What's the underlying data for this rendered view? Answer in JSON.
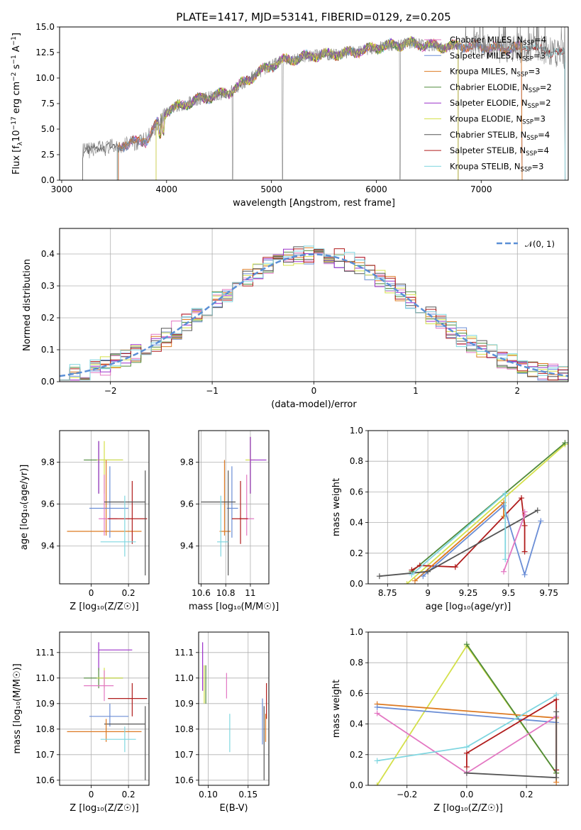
{
  "title": "PLATE=1417, MJD=53141, FIBERID=0129, z=0.205",
  "colors": {
    "chabrier_miles": "#e377c2",
    "salpeter_miles": "#6b8ed6",
    "kroupa_miles": "#dd7a22",
    "chabrier_elodie": "#4f8a3a",
    "salpeter_elodie": "#9b30c9",
    "kroupa_elodie": "#d4e04a",
    "chabrier_stelib": "#555555",
    "salpeter_stelib": "#b01c1c",
    "kroupa_stelib": "#7fd6e0",
    "data": "#808080",
    "gaussian": "#5b8fd6"
  },
  "chart_data": [
    {
      "id": "spectrum",
      "type": "line",
      "xlabel": "wavelength [Angstrom, rest frame]",
      "ylabel": "Flux [f$_\\lambda$10$^{-17}$ erg cm$^{-2}$ s$^{-1}$ A$^{-1}$]",
      "ylabel_parts": [
        "Flux [f",
        "λ",
        "10",
        "−17",
        " erg cm",
        "−2",
        " s",
        "−1",
        " A",
        "−1",
        "]"
      ],
      "xlim": [
        2980,
        7830
      ],
      "ylim": [
        0,
        15
      ],
      "xticks": [
        3000,
        4000,
        5000,
        6000,
        7000
      ],
      "yticks": [
        0.0,
        2.5,
        5.0,
        7.5,
        10.0,
        12.5,
        15.0
      ],
      "grid": false,
      "legend_loc": "right",
      "legend": [
        {
          "name": "Chabrier MILES",
          "n": "4",
          "color": "chabrier_miles"
        },
        {
          "name": "Salpeter MILES",
          "n": "3",
          "color": "salpeter_miles"
        },
        {
          "name": "Kroupa MILES",
          "n": "3",
          "color": "kroupa_miles"
        },
        {
          "name": "Chabrier ELODIE",
          "n": "2",
          "color": "chabrier_elodie"
        },
        {
          "name": "Salpeter ELODIE",
          "n": "2",
          "color": "salpeter_elodie"
        },
        {
          "name": "Kroupa ELODIE",
          "n": "3",
          "color": "kroupa_elodie"
        },
        {
          "name": "Chabrier STELIB",
          "n": "4",
          "color": "chabrier_stelib"
        },
        {
          "name": "Salpeter STELIB",
          "n": "4",
          "color": "salpeter_stelib"
        },
        {
          "name": "Kroupa STELIB",
          "n": "3",
          "color": "kroupa_stelib"
        }
      ],
      "n_label": "N",
      "n_sub": "SSP",
      "continuum": [
        [
          3200,
          2.8
        ],
        [
          3500,
          3.3
        ],
        [
          3800,
          3.9
        ],
        [
          4000,
          6.8
        ],
        [
          4300,
          7.9
        ],
        [
          4600,
          8.6
        ],
        [
          4900,
          10.7
        ],
        [
          5100,
          11.7
        ],
        [
          5400,
          12.2
        ],
        [
          5700,
          12.4
        ],
        [
          6000,
          13.0
        ],
        [
          6300,
          13.4
        ],
        [
          6600,
          13.1
        ],
        [
          6900,
          13.1
        ],
        [
          7200,
          12.9
        ],
        [
          7500,
          13.0
        ],
        [
          7800,
          12.3
        ]
      ],
      "model_starts": {
        "chabrier_stelib": 3200,
        "salpeter_stelib": 3530,
        "kroupa_stelib": 3530,
        "chabrier_miles": 3540,
        "salpeter_miles": 3540,
        "kroupa_miles": 3540,
        "chabrier_elodie": 3900,
        "salpeter_elodie": 3900,
        "kroupa_elodie": 3900
      },
      "model_ends": {
        "chabrier_miles": 7390,
        "salpeter_miles": 7390,
        "kroupa_miles": 7390,
        "chabrier_elodie": 6780,
        "salpeter_elodie": 6780,
        "kroupa_elodie": 6780,
        "chabrier_stelib": 7800,
        "salpeter_stelib": 7800,
        "kroupa_stelib": 7800
      },
      "deep_lines": [
        4630,
        6225,
        5105
      ]
    },
    {
      "id": "residual-histogram",
      "type": "histogram",
      "xlabel": "(data-model)/error",
      "ylabel": "Normed distribution",
      "xlim": [
        -2.5,
        2.5
      ],
      "ylim": [
        0,
        0.48
      ],
      "xticks": [
        -2,
        -1,
        0,
        1,
        2
      ],
      "xtick_labels": [
        "−2",
        "−1",
        "0",
        "1",
        "2"
      ],
      "yticks": [
        0.0,
        0.1,
        0.2,
        0.3,
        0.4
      ],
      "grid": true,
      "bin_width": 0.1,
      "legend_loc": "upper right",
      "legend": [
        {
          "name": "𝒩(0, 1)",
          "color": "gaussian",
          "dashed": true
        }
      ]
    },
    {
      "id": "age-vs-metallicity",
      "type": "errorbar",
      "xlabel": "Z [log₁₀(Z/Z☉)]",
      "ylabel": "age  [log₁₀(age/yr)]",
      "xlim": [
        -0.17,
        0.31
      ],
      "ylim": [
        9.22,
        9.95
      ],
      "xticks": [
        0.0,
        0.2
      ],
      "yticks": [
        9.4,
        9.6,
        9.8
      ],
      "grid": true,
      "points": [
        {
          "c": "chabrier_elodie",
          "x": 0.04,
          "xerr": [
            0.08,
            0.13
          ],
          "y": 9.81,
          "yerr": [
            0.16,
            0.09
          ]
        },
        {
          "c": "kroupa_elodie",
          "x": 0.07,
          "xerr": [
            0.04,
            0.1
          ],
          "y": 9.81,
          "yerr": [
            0.16,
            0.09
          ]
        },
        {
          "c": "salpeter_elodie",
          "x": 0.04,
          "xerr": [
            0.0,
            0.0
          ],
          "y": 9.81,
          "yerr": [
            0.16,
            0.09
          ]
        },
        {
          "c": "kroupa_miles",
          "x": 0.08,
          "xerr": [
            0.21,
            0.19
          ],
          "y": 9.47,
          "yerr": [
            0.02,
            0.34
          ]
        },
        {
          "c": "salpeter_miles",
          "x": 0.1,
          "xerr": [
            0.11,
            0.1
          ],
          "y": 9.58,
          "yerr": [
            0.14,
            0.2
          ]
        },
        {
          "c": "chabrier_miles",
          "x": 0.07,
          "xerr": [
            0.03,
            0.07
          ],
          "y": 9.53,
          "yerr": [
            0.08,
            0.21
          ]
        },
        {
          "c": "salpeter_stelib",
          "x": 0.22,
          "xerr": [
            0.13,
            0.08
          ],
          "y": 9.53,
          "yerr": [
            0.12,
            0.18
          ]
        },
        {
          "c": "chabrier_stelib",
          "x": 0.29,
          "xerr": [
            0.22,
            0.0
          ],
          "y": 9.61,
          "yerr": [
            0.35,
            0.15
          ]
        },
        {
          "c": "kroupa_stelib",
          "x": 0.18,
          "xerr": [
            0.13,
            0.06
          ],
          "y": 9.42,
          "yerr": [
            0.07,
            0.22
          ]
        }
      ]
    },
    {
      "id": "age-vs-mass",
      "type": "errorbar",
      "xlabel": "mass [log₁₀(M/M☉)]",
      "ylabel": "",
      "xlim": [
        10.58,
        11.15
      ],
      "ylim": [
        9.22,
        9.95
      ],
      "xticks": [
        10.6,
        10.8,
        11.0
      ],
      "yticks": [
        9.4,
        9.6,
        9.8
      ],
      "grid": true,
      "points": [
        {
          "c": "chabrier_elodie",
          "x": 11.0,
          "xerr": [
            0.0,
            0.0
          ],
          "y": 9.81,
          "yerr": [
            0.16,
            0.11
          ]
        },
        {
          "c": "kroupa_elodie",
          "x": 11.0,
          "xerr": [
            0.04,
            0.04
          ],
          "y": 9.81,
          "yerr": [
            0.16,
            0.11
          ]
        },
        {
          "c": "salpeter_elodie",
          "x": 11.0,
          "xerr": [
            0.0,
            0.13
          ],
          "y": 9.81,
          "yerr": [
            0.16,
            0.11
          ]
        },
        {
          "c": "kroupa_miles",
          "x": 10.79,
          "xerr": [
            0.04,
            0.05
          ],
          "y": 9.47,
          "yerr": [
            0.02,
            0.34
          ]
        },
        {
          "c": "salpeter_miles",
          "x": 10.85,
          "xerr": [
            0.04,
            0.05
          ],
          "y": 9.58,
          "yerr": [
            0.14,
            0.2
          ]
        },
        {
          "c": "chabrier_miles",
          "x": 10.97,
          "xerr": [
            0.06,
            0.06
          ],
          "y": 9.53,
          "yerr": [
            0.08,
            0.21
          ]
        },
        {
          "c": "salpeter_stelib",
          "x": 10.92,
          "xerr": [
            0.07,
            0.06
          ],
          "y": 9.53,
          "yerr": [
            0.12,
            0.18
          ]
        },
        {
          "c": "chabrier_stelib",
          "x": 10.82,
          "xerr": [
            0.22,
            0.06
          ],
          "y": 9.61,
          "yerr": [
            0.35,
            0.15
          ]
        },
        {
          "c": "kroupa_stelib",
          "x": 10.76,
          "xerr": [
            0.03,
            0.06
          ],
          "y": 9.42,
          "yerr": [
            0.07,
            0.22
          ]
        }
      ]
    },
    {
      "id": "mass-weight-vs-age",
      "type": "line",
      "xlabel": "age  [log₁₀(age/yr)]",
      "ylabel": "mass weight",
      "xlim": [
        8.63,
        9.87
      ],
      "ylim": [
        0.0,
        1.0
      ],
      "xticks": [
        8.75,
        9.0,
        9.25,
        9.5,
        9.75
      ],
      "yticks": [
        0.0,
        0.2,
        0.4,
        0.6,
        0.8,
        1.0
      ],
      "grid": true,
      "series": [
        {
          "c": "kroupa_elodie",
          "x": [
            8.87,
            9.85
          ],
          "y": [
            0.0,
            0.91
          ]
        },
        {
          "c": "chabrier_elodie",
          "x": [
            8.9,
            9.85
          ],
          "y": [
            0.08,
            0.92
          ]
        },
        {
          "c": "salpeter_stelib",
          "x": [
            8.9,
            8.95,
            9.17,
            9.58,
            9.6,
            9.6
          ],
          "y": [
            0.09,
            0.12,
            0.11,
            0.56,
            0.38,
            0.21
          ]
        },
        {
          "c": "kroupa_miles",
          "x": [
            8.92,
            9.47,
            9.47
          ],
          "y": [
            0.02,
            0.53,
            0.44
          ]
        },
        {
          "c": "salpeter_miles",
          "x": [
            8.97,
            9.47,
            9.6,
            9.7
          ],
          "y": [
            0.05,
            0.51,
            0.06,
            0.41
          ]
        },
        {
          "c": "chabrier_stelib",
          "x": [
            8.7,
            9.0,
            9.68
          ],
          "y": [
            0.05,
            0.08,
            0.48
          ]
        },
        {
          "c": "kroupa_stelib",
          "x": [
            8.9,
            9.48,
            9.48
          ],
          "y": [
            0.06,
            0.59,
            0.16
          ]
        },
        {
          "c": "chabrier_miles",
          "x": [
            9.47,
            9.6,
            9.6
          ],
          "y": [
            0.08,
            0.45,
            0.47
          ]
        }
      ]
    },
    {
      "id": "mass-vs-metallicity",
      "type": "errorbar",
      "xlabel": "Z [log₁₀(Z/Z☉)]",
      "ylabel": "mass [log₁₀(M/M☉)]",
      "xlim": [
        -0.17,
        0.31
      ],
      "ylim": [
        10.58,
        11.18
      ],
      "xticks": [
        0.0,
        0.2
      ],
      "yticks": [
        10.6,
        10.7,
        10.8,
        10.9,
        11.0,
        11.1
      ],
      "grid": true,
      "points": [
        {
          "c": "salpeter_elodie",
          "x": 0.04,
          "xerr": [
            0.0,
            0.18
          ],
          "y": 11.11,
          "yerr": [
            0.08,
            0.03
          ]
        },
        {
          "c": "chabrier_elodie",
          "x": 0.04,
          "xerr": [
            0.08,
            0.13
          ],
          "y": 11.0,
          "yerr": [
            0.04,
            0.04
          ]
        },
        {
          "c": "kroupa_elodie",
          "x": 0.07,
          "xerr": [
            0.04,
            0.1
          ],
          "y": 11.0,
          "yerr": [
            0.04,
            0.04
          ]
        },
        {
          "c": "chabrier_miles",
          "x": 0.07,
          "xerr": [
            0.11,
            0.05
          ],
          "y": 10.97,
          "yerr": [
            0.06,
            0.06
          ]
        },
        {
          "c": "salpeter_stelib",
          "x": 0.22,
          "xerr": [
            0.13,
            0.08
          ],
          "y": 10.92,
          "yerr": [
            0.07,
            0.06
          ]
        },
        {
          "c": "salpeter_miles",
          "x": 0.1,
          "xerr": [
            0.11,
            0.1
          ],
          "y": 10.85,
          "yerr": [
            0.04,
            0.05
          ]
        },
        {
          "c": "chabrier_stelib",
          "x": 0.29,
          "xerr": [
            0.22,
            0.0
          ],
          "y": 10.82,
          "yerr": [
            0.22,
            0.07
          ]
        },
        {
          "c": "kroupa_miles",
          "x": 0.08,
          "xerr": [
            0.21,
            0.19
          ],
          "y": 10.79,
          "yerr": [
            0.04,
            0.05
          ]
        },
        {
          "c": "kroupa_stelib",
          "x": 0.18,
          "xerr": [
            0.13,
            0.06
          ],
          "y": 10.76,
          "yerr": [
            0.05,
            0.05
          ]
        }
      ]
    },
    {
      "id": "mass-vs-ebv",
      "type": "errorbar",
      "xlabel": "E(B-V)",
      "ylabel": "",
      "xlim": [
        0.088,
        0.176
      ],
      "ylim": [
        10.58,
        11.18
      ],
      "xticks": [
        0.1,
        0.15
      ],
      "xtick_labels": [
        "0.10",
        "0.15"
      ],
      "yticks": [
        10.6,
        10.7,
        10.8,
        10.9,
        11.0,
        11.1
      ],
      "grid": true,
      "points": [
        {
          "c": "salpeter_elodie",
          "x": 0.093,
          "xerr": [
            0,
            0
          ],
          "y": 11.05,
          "yerr": [
            0.1,
            0.09
          ]
        },
        {
          "c": "kroupa_elodie",
          "x": 0.095,
          "xerr": [
            0,
            0
          ],
          "y": 10.98,
          "yerr": [
            0.08,
            0.07
          ]
        },
        {
          "c": "chabrier_elodie",
          "x": 0.097,
          "xerr": [
            0,
            0
          ],
          "y": 10.98,
          "yerr": [
            0.08,
            0.07
          ]
        },
        {
          "c": "chabrier_miles",
          "x": 0.123,
          "xerr": [
            0,
            0
          ],
          "y": 10.97,
          "yerr": [
            0.05,
            0.05
          ]
        },
        {
          "c": "kroupa_stelib",
          "x": 0.127,
          "xerr": [
            0,
            0
          ],
          "y": 10.78,
          "yerr": [
            0.07,
            0.08
          ]
        },
        {
          "c": "salpeter_miles",
          "x": 0.168,
          "xerr": [
            0,
            0
          ],
          "y": 10.82,
          "yerr": [
            0.08,
            0.1
          ]
        },
        {
          "c": "chabrier_stelib",
          "x": 0.17,
          "xerr": [
            0,
            0
          ],
          "y": 10.74,
          "yerr": [
            0.14,
            0.15
          ]
        },
        {
          "c": "salpeter_stelib",
          "x": 0.173,
          "xerr": [
            0,
            0
          ],
          "y": 10.9,
          "yerr": [
            0.06,
            0.08
          ]
        },
        {
          "c": "kroupa_miles",
          "x": 0.172,
          "xerr": [
            0,
            0
          ],
          "y": 10.8,
          "yerr": [
            0.05,
            0.06
          ]
        }
      ]
    },
    {
      "id": "mass-weight-vs-metallicity",
      "type": "line",
      "xlabel": "Z [log₁₀(Z/Z☉)]",
      "ylabel": "mass weight",
      "xlim": [
        -0.33,
        0.34
      ],
      "ylim": [
        0.0,
        1.0
      ],
      "xticks": [
        -0.2,
        0.0,
        0.2
      ],
      "xtick_labels": [
        "−0.2",
        "0.0",
        "0.2"
      ],
      "yticks": [
        0.0,
        0.2,
        0.4,
        0.6,
        0.8,
        1.0
      ],
      "grid": true,
      "series": [
        {
          "c": "kroupa_elodie",
          "x": [
            -0.3,
            0.0,
            0.3
          ],
          "y": [
            0.0,
            0.91,
            0.08
          ]
        },
        {
          "c": "chabrier_elodie",
          "x": [
            0.0,
            0.3
          ],
          "y": [
            0.92,
            0.08
          ]
        },
        {
          "c": "kroupa_miles",
          "x": [
            -0.3,
            0.3,
            0.3
          ],
          "y": [
            0.53,
            0.44,
            0.02
          ]
        },
        {
          "c": "salpeter_miles",
          "x": [
            -0.3,
            0.3
          ],
          "y": [
            0.51,
            0.41
          ]
        },
        {
          "c": "chabrier_miles",
          "x": [
            -0.3,
            0.0,
            0.3
          ],
          "y": [
            0.47,
            0.08,
            0.45
          ]
        },
        {
          "c": "salpeter_stelib",
          "x": [
            0.0,
            0.0,
            0.3,
            0.3
          ],
          "y": [
            0.12,
            0.21,
            0.56,
            0.1
          ]
        },
        {
          "c": "kroupa_stelib",
          "x": [
            -0.3,
            0.0,
            0.3
          ],
          "y": [
            0.16,
            0.25,
            0.59
          ]
        },
        {
          "c": "chabrier_stelib",
          "x": [
            0.0,
            0.3,
            0.3
          ],
          "y": [
            0.08,
            0.05,
            0.48
          ]
        }
      ]
    }
  ]
}
